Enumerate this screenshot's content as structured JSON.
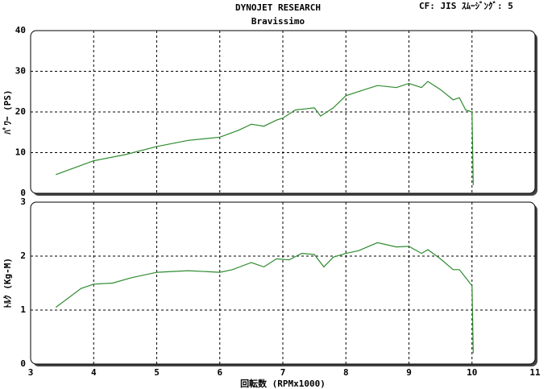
{
  "header": {
    "title": "DYNOJET  RESEARCH",
    "subtitle": "Bravissimo",
    "settings": "CF: JIS  ｽﾑｰｼﾞﾝｸﾞ: 5"
  },
  "chart_data": [
    {
      "type": "line",
      "ylabel": "ﾊﾟﾜｰ (PS)",
      "color": "#2e8b2e",
      "grid": true,
      "xlim": [
        3,
        11
      ],
      "xticks": [
        3,
        4,
        5,
        6,
        7,
        8,
        9,
        10,
        11
      ],
      "ylim": [
        0,
        40
      ],
      "yticks": [
        0,
        10,
        20,
        30,
        40
      ],
      "x": [
        3.4,
        4.0,
        4.5,
        5.0,
        5.5,
        6.0,
        6.3,
        6.5,
        6.7,
        6.9,
        7.0,
        7.2,
        7.5,
        7.6,
        7.8,
        8.0,
        8.3,
        8.5,
        8.8,
        9.0,
        9.2,
        9.3,
        9.5,
        9.7,
        9.8,
        9.9,
        10.0,
        10.02
      ],
      "values": [
        4.6,
        8,
        9.5,
        11.5,
        13,
        13.8,
        15.5,
        17,
        16.5,
        18,
        18.5,
        20.5,
        21,
        19,
        21,
        24,
        25.5,
        26.5,
        26,
        27,
        26,
        27.5,
        25.5,
        23,
        23.5,
        20.5,
        20,
        2
      ]
    },
    {
      "type": "line",
      "ylabel": "ﾄﾙｸ (Kg-M)",
      "xlabel": "回転数 (RPMx1000)",
      "color": "#2e8b2e",
      "grid": true,
      "xlim": [
        3,
        11
      ],
      "xticks": [
        3,
        4,
        5,
        6,
        7,
        8,
        9,
        10,
        11
      ],
      "ylim": [
        0,
        3
      ],
      "yticks": [
        0,
        1,
        2,
        3
      ],
      "x": [
        3.4,
        3.8,
        4.0,
        4.3,
        4.6,
        5.0,
        5.5,
        6.0,
        6.2,
        6.5,
        6.7,
        6.9,
        7.1,
        7.3,
        7.5,
        7.65,
        7.8,
        8.0,
        8.2,
        8.5,
        8.8,
        9.0,
        9.2,
        9.3,
        9.5,
        9.7,
        9.8,
        9.9,
        10.0,
        10.02
      ],
      "values": [
        1.05,
        1.4,
        1.48,
        1.5,
        1.6,
        1.7,
        1.73,
        1.7,
        1.75,
        1.88,
        1.8,
        1.95,
        1.93,
        2.05,
        2.03,
        1.8,
        1.98,
        2.05,
        2.1,
        2.25,
        2.17,
        2.18,
        2.05,
        2.12,
        1.95,
        1.75,
        1.75,
        1.6,
        1.45,
        0.2
      ]
    }
  ]
}
